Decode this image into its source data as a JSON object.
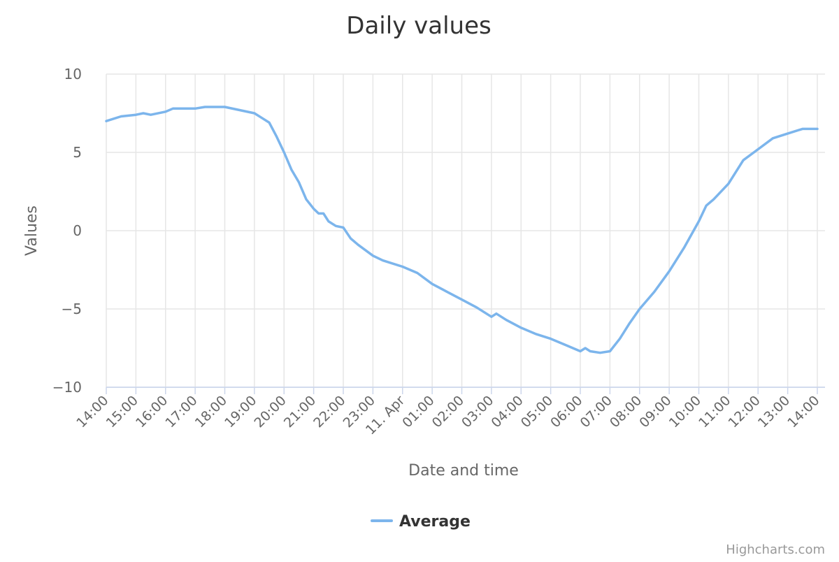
{
  "chart_data": {
    "type": "line",
    "title": "Daily values",
    "xlabel": "Date and time",
    "ylabel": "Values",
    "ylim": [
      -10,
      10
    ],
    "yticks": [
      10,
      5,
      0,
      -5,
      -10
    ],
    "ytick_labels": [
      "10",
      "5",
      "0",
      "−5",
      "−10"
    ],
    "x_range": [
      "14:00",
      "14:00"
    ],
    "xtick_labels": [
      "14:00",
      "15:00",
      "16:00",
      "17:00",
      "18:00",
      "19:00",
      "20:00",
      "21:00",
      "22:00",
      "23:00",
      "11. Apr",
      "01:00",
      "02:00",
      "03:00",
      "04:00",
      "05:00",
      "06:00",
      "07:00",
      "08:00",
      "09:00",
      "10:00",
      "11:00",
      "12:00",
      "13:00",
      "14:00"
    ],
    "grid": "vertical and horizontal",
    "legend_position": "bottom-center",
    "series": [
      {
        "name": "Average",
        "color": "#7cb5ec",
        "x": [
          "14:00",
          "14:30",
          "15:00",
          "15:15",
          "15:30",
          "16:00",
          "16:15",
          "17:00",
          "17:20",
          "18:00",
          "18:30",
          "19:00",
          "19:15",
          "19:30",
          "19:45",
          "20:00",
          "20:15",
          "20:30",
          "20:45",
          "21:00",
          "21:10",
          "21:20",
          "21:30",
          "21:45",
          "22:00",
          "22:15",
          "22:30",
          "23:00",
          "23:20",
          "11. Apr",
          "00:30",
          "01:00",
          "01:30",
          "02:00",
          "02:30",
          "03:00",
          "03:10",
          "03:30",
          "04:00",
          "04:30",
          "05:00",
          "05:30",
          "06:00",
          "06:10",
          "06:20",
          "06:40",
          "07:00",
          "07:20",
          "07:40",
          "08:00",
          "08:30",
          "09:00",
          "09:30",
          "10:00",
          "10:15",
          "10:30",
          "11:00",
          "11:30",
          "12:00",
          "12:30",
          "13:00",
          "13:30",
          "14:00"
        ],
        "y": [
          7.0,
          7.3,
          7.4,
          7.5,
          7.4,
          7.6,
          7.8,
          7.8,
          7.9,
          7.9,
          7.7,
          7.5,
          7.2,
          6.9,
          6.0,
          5.0,
          3.9,
          3.1,
          2.0,
          1.4,
          1.1,
          1.1,
          0.6,
          0.3,
          0.2,
          -0.5,
          -0.9,
          -1.6,
          -1.9,
          -2.3,
          -2.7,
          -3.4,
          -3.9,
          -4.4,
          -4.9,
          -5.5,
          -5.3,
          -5.7,
          -6.2,
          -6.6,
          -6.9,
          -7.3,
          -7.7,
          -7.5,
          -7.7,
          -7.8,
          -7.7,
          -6.9,
          -5.9,
          -5.0,
          -3.9,
          -2.6,
          -1.1,
          0.6,
          1.6,
          2.0,
          3.0,
          4.5,
          5.2,
          5.9,
          6.2,
          6.5,
          6.5
        ]
      }
    ]
  },
  "credits": "Highcharts.com"
}
